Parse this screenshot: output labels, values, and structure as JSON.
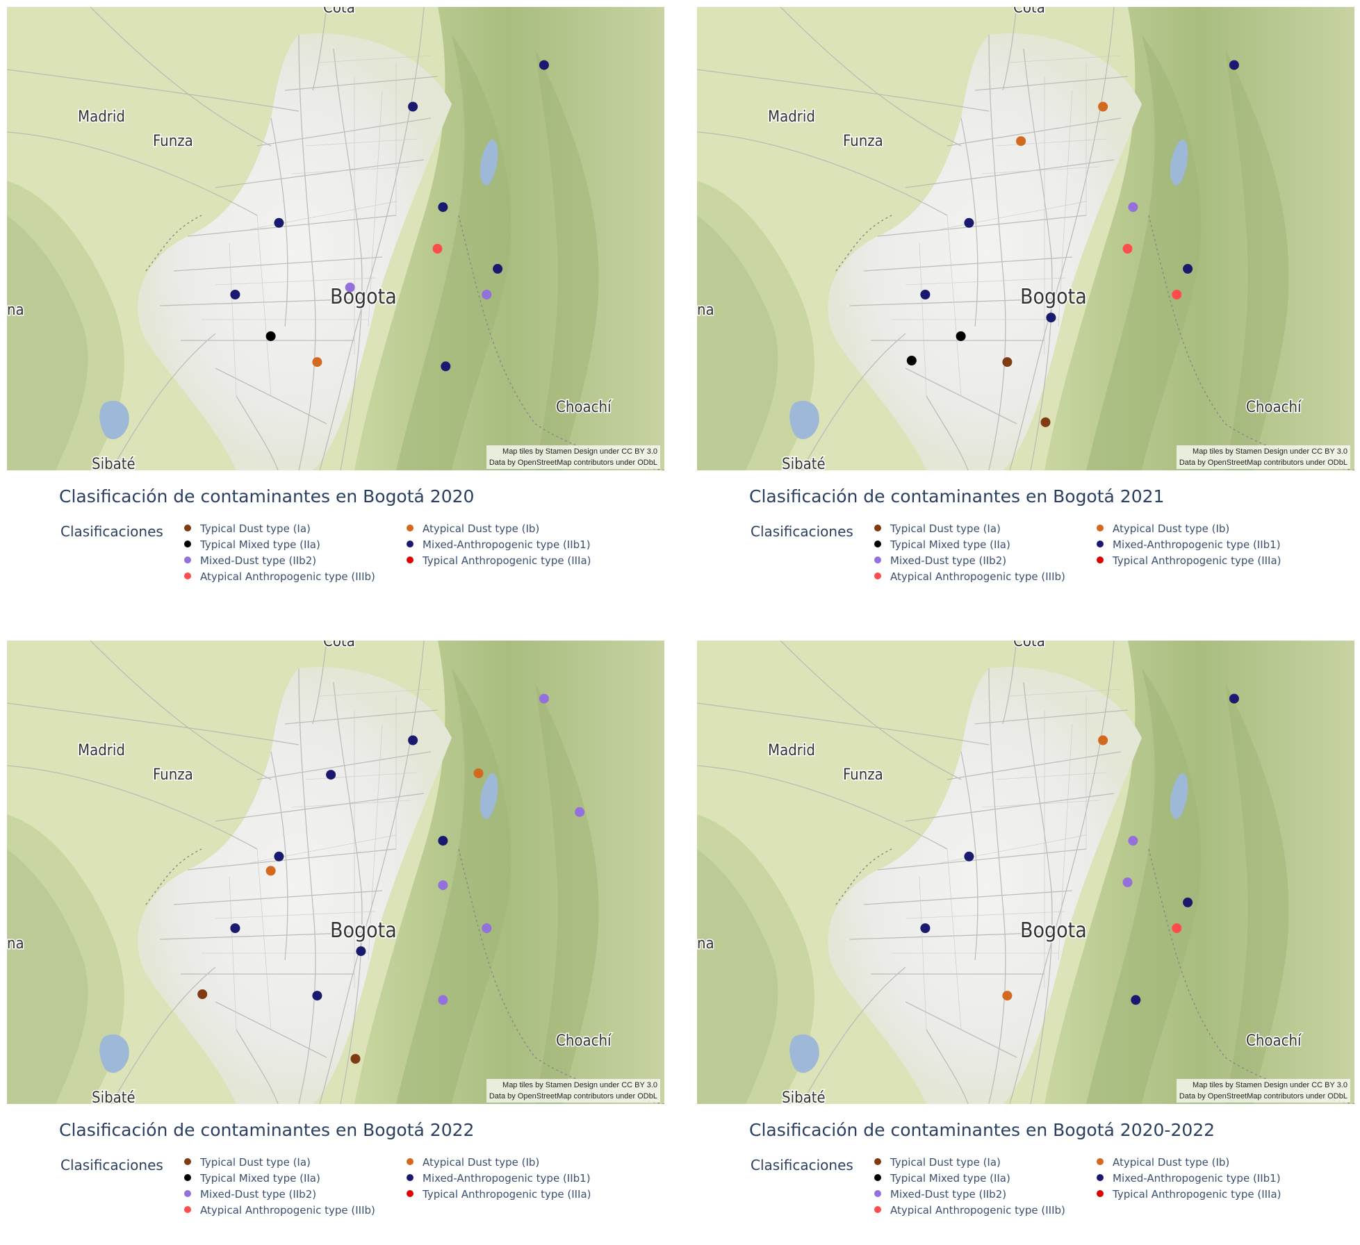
{
  "attribution": [
    "Map tiles by Stamen Design under CC BY 3.0",
    "Data by OpenStreetMap contributors under ODbL"
  ],
  "place_labels": {
    "cota": "Cota",
    "madrid": "Madrid",
    "funza": "Funza",
    "bogota": "Bogota",
    "choachi": "Choachí",
    "sibate": "Sibaté",
    "edge": "na"
  },
  "legend": {
    "title": "Clasificaciones",
    "items": [
      {
        "key": "Ia",
        "label": "Typical Dust type (Ia)",
        "color": "#7f3c12"
      },
      {
        "key": "IIa",
        "label": "Typical Mixed type (IIa)",
        "color": "#000000"
      },
      {
        "key": "IIb2",
        "label": "Mixed-Dust type (IIb2)",
        "color": "#9370db"
      },
      {
        "key": "IIIb",
        "label": "Atypical Anthropogenic type (IIIb)",
        "color": "#ff4c4c"
      },
      {
        "key": "Ib",
        "label": "Atypical Dust type (Ib)",
        "color": "#d2691e"
      },
      {
        "key": "IIb1",
        "label": "Mixed-Anthropogenic type (IIb1)",
        "color": "#191970"
      },
      {
        "key": "IIIa",
        "label": "Typical Anthropogenic type (IIIa)",
        "color": "#e10000"
      }
    ]
  },
  "maps": [
    {
      "title": "Clasificación de contaminantes en Bogotá 2020",
      "stations": [
        {
          "lon": -74.034,
          "lat": 4.765,
          "class": "IIb1"
        },
        {
          "lon": -74.082,
          "lat": 4.736,
          "class": "IIb1"
        },
        {
          "lon": -74.071,
          "lat": 4.666,
          "class": "IIb1"
        },
        {
          "lon": -74.131,
          "lat": 4.655,
          "class": "IIb1"
        },
        {
          "lon": -74.073,
          "lat": 4.637,
          "class": "IIIb"
        },
        {
          "lon": -74.051,
          "lat": 4.623,
          "class": "IIb1"
        },
        {
          "lon": -74.105,
          "lat": 4.61,
          "class": "IIb2"
        },
        {
          "lon": -74.147,
          "lat": 4.605,
          "class": "IIb1"
        },
        {
          "lon": -74.055,
          "lat": 4.605,
          "class": "IIb2"
        },
        {
          "lon": -74.134,
          "lat": 4.576,
          "class": "IIa"
        },
        {
          "lon": -74.117,
          "lat": 4.558,
          "class": "Ib"
        },
        {
          "lon": -74.07,
          "lat": 4.555,
          "class": "IIb1"
        }
      ]
    },
    {
      "title": "Clasificación de contaminantes en Bogotá 2021",
      "stations": [
        {
          "lon": -74.034,
          "lat": 4.765,
          "class": "IIb1"
        },
        {
          "lon": -74.082,
          "lat": 4.736,
          "class": "Ib"
        },
        {
          "lon": -74.112,
          "lat": 4.712,
          "class": "Ib"
        },
        {
          "lon": -74.071,
          "lat": 4.666,
          "class": "IIb2"
        },
        {
          "lon": -74.131,
          "lat": 4.655,
          "class": "IIb1"
        },
        {
          "lon": -74.073,
          "lat": 4.637,
          "class": "IIIb"
        },
        {
          "lon": -74.051,
          "lat": 4.623,
          "class": "IIb1"
        },
        {
          "lon": -74.055,
          "lat": 4.605,
          "class": "IIIb"
        },
        {
          "lon": -74.147,
          "lat": 4.605,
          "class": "IIb1"
        },
        {
          "lon": -74.101,
          "lat": 4.589,
          "class": "IIb1"
        },
        {
          "lon": -74.134,
          "lat": 4.576,
          "class": "IIa"
        },
        {
          "lon": -74.152,
          "lat": 4.559,
          "class": "IIa"
        },
        {
          "lon": -74.117,
          "lat": 4.558,
          "class": "Ia"
        },
        {
          "lon": -74.103,
          "lat": 4.516,
          "class": "Ia"
        }
      ]
    },
    {
      "title": "Clasificación de contaminantes en Bogotá 2022",
      "stations": [
        {
          "lon": -74.034,
          "lat": 4.765,
          "class": "IIb2"
        },
        {
          "lon": -74.082,
          "lat": 4.736,
          "class": "IIb1"
        },
        {
          "lon": -74.112,
          "lat": 4.712,
          "class": "IIb1"
        },
        {
          "lon": -74.058,
          "lat": 4.713,
          "class": "Ib"
        },
        {
          "lon": -74.021,
          "lat": 4.686,
          "class": "IIb2"
        },
        {
          "lon": -74.071,
          "lat": 4.666,
          "class": "IIb1"
        },
        {
          "lon": -74.131,
          "lat": 4.655,
          "class": "IIb1"
        },
        {
          "lon": -74.134,
          "lat": 4.645,
          "class": "Ib"
        },
        {
          "lon": -74.071,
          "lat": 4.635,
          "class": "IIb2"
        },
        {
          "lon": -74.055,
          "lat": 4.605,
          "class": "IIb2"
        },
        {
          "lon": -74.147,
          "lat": 4.605,
          "class": "IIb1"
        },
        {
          "lon": -74.101,
          "lat": 4.589,
          "class": "IIb1"
        },
        {
          "lon": -74.159,
          "lat": 4.559,
          "class": "Ia"
        },
        {
          "lon": -74.117,
          "lat": 4.558,
          "class": "IIb1"
        },
        {
          "lon": -74.071,
          "lat": 4.555,
          "class": "IIb2"
        },
        {
          "lon": -74.103,
          "lat": 4.514,
          "class": "Ia"
        }
      ]
    },
    {
      "title": "Clasificación de contaminantes en Bogotá 2020-2022",
      "stations": [
        {
          "lon": -74.034,
          "lat": 4.765,
          "class": "IIb1"
        },
        {
          "lon": -74.082,
          "lat": 4.736,
          "class": "Ib"
        },
        {
          "lon": -74.071,
          "lat": 4.666,
          "class": "IIb2"
        },
        {
          "lon": -74.131,
          "lat": 4.655,
          "class": "IIb1"
        },
        {
          "lon": -74.073,
          "lat": 4.637,
          "class": "IIb2"
        },
        {
          "lon": -74.051,
          "lat": 4.623,
          "class": "IIb1"
        },
        {
          "lon": -74.147,
          "lat": 4.605,
          "class": "IIb1"
        },
        {
          "lon": -74.055,
          "lat": 4.605,
          "class": "IIIb"
        },
        {
          "lon": -74.117,
          "lat": 4.558,
          "class": "Ib"
        },
        {
          "lon": -74.07,
          "lat": 4.555,
          "class": "IIb1"
        }
      ]
    }
  ]
}
